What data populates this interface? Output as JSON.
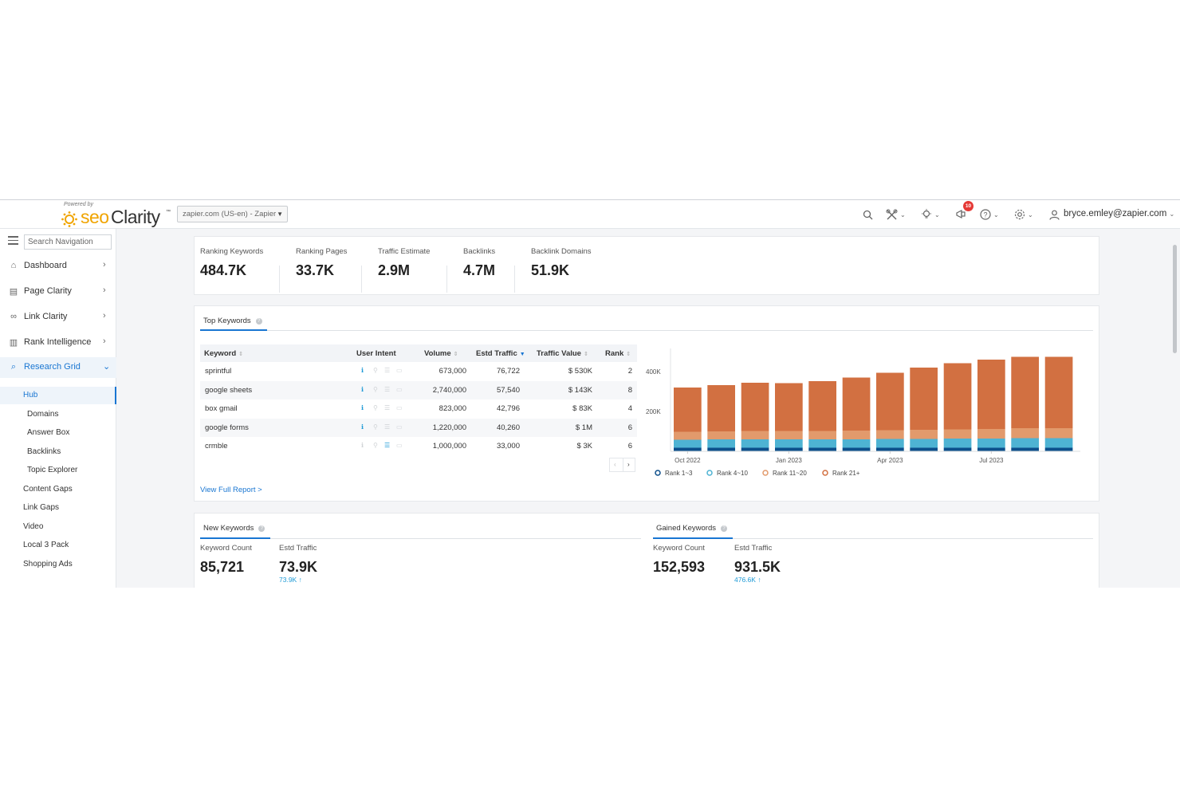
{
  "header": {
    "powered_by": "Powered by",
    "logo_seo": "seo",
    "logo_clarity": "Clarity",
    "logo_tm": "™",
    "domain": "zapier.com (US-en) - Zapier",
    "notifications_count": "10",
    "user_email": "bryce.emley@zapier.com",
    "icons": [
      "search-icon",
      "tools-icon",
      "lightbulb-icon",
      "megaphone-icon",
      "help-icon",
      "gear-icon",
      "user-icon"
    ]
  },
  "sidebar": {
    "search_placeholder": "Search Navigation",
    "items": [
      {
        "label": "Dashboard",
        "icon": "home-icon"
      },
      {
        "label": "Page Clarity",
        "icon": "page-icon"
      },
      {
        "label": "Link Clarity",
        "icon": "link-icon"
      },
      {
        "label": "Rank Intelligence",
        "icon": "bar-chart-icon"
      },
      {
        "label": "Research Grid",
        "icon": "search-icon"
      }
    ],
    "sub_items": [
      "Hub",
      "Domains",
      "Answer Box",
      "Backlinks",
      "Topic Explorer"
    ],
    "sections": [
      "Content Gaps",
      "Link Gaps",
      "Video",
      "Local 3 Pack",
      "Shopping Ads"
    ]
  },
  "metrics": [
    {
      "label": "Ranking Keywords",
      "value": "484.7K"
    },
    {
      "label": "Ranking Pages",
      "value": "33.7K"
    },
    {
      "label": "Traffic Estimate",
      "value": "2.9M"
    },
    {
      "label": "Backlinks",
      "value": "4.7M"
    },
    {
      "label": "Backlink Domains",
      "value": "51.9K"
    }
  ],
  "top_keywords": {
    "tab": "Top Keywords",
    "columns": [
      "Keyword",
      "User Intent",
      "Volume",
      "Estd Traffic",
      "Traffic Value",
      "Rank"
    ],
    "rows": [
      {
        "keyword": "sprintful",
        "volume": "673,000",
        "traffic": "76,722",
        "value": "$ 530K",
        "rank": "2"
      },
      {
        "keyword": "google sheets",
        "volume": "2,740,000",
        "traffic": "57,540",
        "value": "$ 143K",
        "rank": "8"
      },
      {
        "keyword": "box gmail",
        "volume": "823,000",
        "traffic": "42,796",
        "value": "$ 83K",
        "rank": "4"
      },
      {
        "keyword": "google forms",
        "volume": "1,220,000",
        "traffic": "40,260",
        "value": "$ 1M",
        "rank": "6"
      },
      {
        "keyword": "crmble",
        "volume": "1,000,000",
        "traffic": "33,000",
        "value": "$ 3K",
        "rank": "6"
      }
    ],
    "view_full": "View Full Report >"
  },
  "chart_data": {
    "type": "bar",
    "stacked": true,
    "categories": [
      "Oct 2022",
      "Nov 2022",
      "Dec 2022",
      "Jan 2023",
      "Feb 2023",
      "Mar 2023",
      "Apr 2023",
      "May 2023",
      "Jun 2023",
      "Jul 2023",
      "Aug 2023",
      "Sep 2023"
    ],
    "x_tick_labels": [
      "Oct 2022",
      "Jan 2023",
      "Apr 2023",
      "Jul 2023"
    ],
    "y_tick_labels": [
      "400K",
      "200K"
    ],
    "ylim": [
      0,
      500000
    ],
    "series": [
      {
        "name": "Rank 1~3",
        "color": "#0d4f8b",
        "values": [
          18000,
          18000,
          18000,
          18000,
          18000,
          18000,
          18000,
          18000,
          18000,
          18000,
          18000,
          18000
        ]
      },
      {
        "name": "Rank 4~10",
        "color": "#4eb3d3",
        "values": [
          40000,
          42000,
          42000,
          42000,
          42000,
          42000,
          44000,
          44000,
          46000,
          46000,
          48000,
          48000
        ]
      },
      {
        "name": "Rank 11~20",
        "color": "#e29a6c",
        "values": [
          40000,
          40000,
          42000,
          42000,
          42000,
          44000,
          44000,
          46000,
          46000,
          48000,
          50000,
          50000
        ]
      },
      {
        "name": "Rank 21+",
        "color": "#d27041",
        "values": [
          222000,
          232000,
          242000,
          240000,
          250000,
          266000,
          288000,
          312000,
          332000,
          348000,
          358000,
          358000
        ]
      }
    ],
    "legend_position": "bottom-left"
  },
  "new_keywords": {
    "tab": "New Keywords",
    "count_label": "Keyword Count",
    "count": "85,721",
    "traffic_label": "Estd Traffic",
    "traffic": "73.9K",
    "traffic_sub": "73.9K"
  },
  "gained_keywords": {
    "tab": "Gained Keywords",
    "count_label": "Keyword Count",
    "count": "152,593",
    "traffic_label": "Estd Traffic",
    "traffic": "931.5K",
    "traffic_sub": "476.6K"
  }
}
